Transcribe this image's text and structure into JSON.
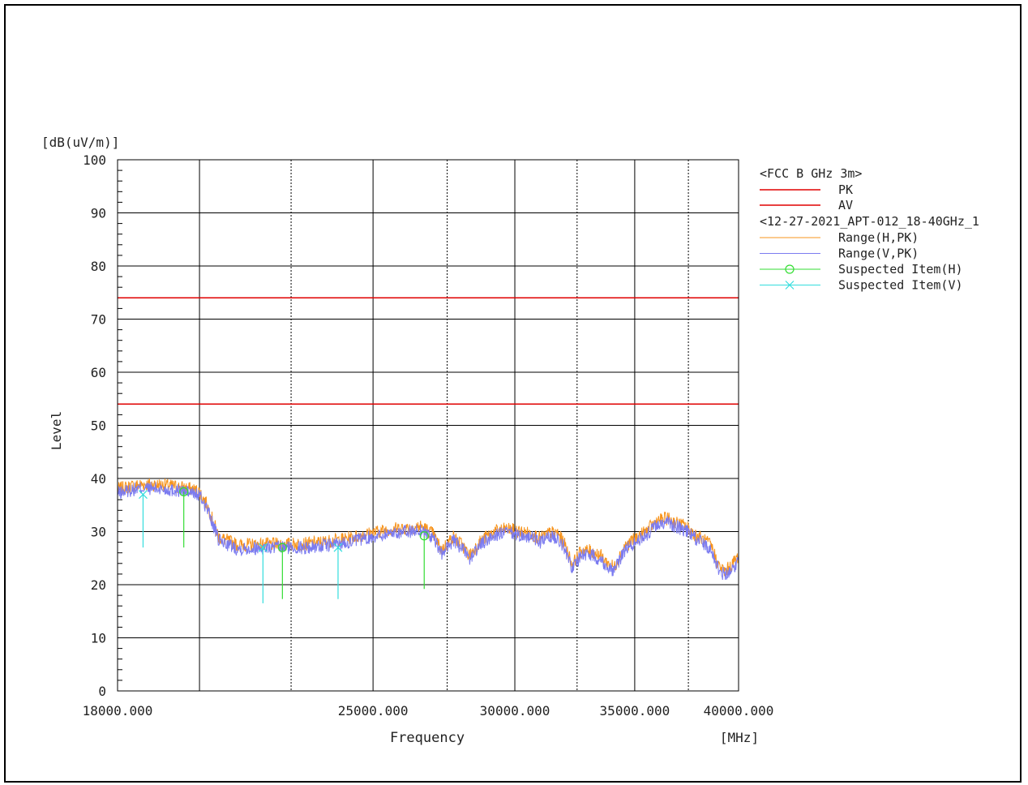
{
  "chart_data": {
    "type": "line",
    "title": "",
    "ylabel": "Level",
    "xlabel": "Frequency",
    "y_unit": "[dB(uV/m)]",
    "x_unit": "[MHz]",
    "ylim": [
      0,
      100
    ],
    "xlim": [
      18000,
      40000
    ],
    "x_scale": "log",
    "y_ticks": [
      0,
      10,
      20,
      30,
      40,
      50,
      60,
      70,
      80,
      90,
      100
    ],
    "y_tick_labels": [
      "0",
      "10",
      "20",
      "30",
      "40",
      "50",
      "60",
      "70",
      "80",
      "90",
      "100"
    ],
    "x_tick_labels": [
      {
        "value": 18000,
        "label": "18000.000"
      },
      {
        "value": 25000,
        "label": "25000.000"
      },
      {
        "value": 30000,
        "label": "30000.000"
      },
      {
        "value": 35000,
        "label": "35000.000"
      },
      {
        "value": 40000,
        "label": "40000.000"
      }
    ],
    "x_gridlines_solid": [
      20000,
      25000,
      30000,
      35000
    ],
    "x_gridlines_dashed": [
      22500,
      27500,
      32500,
      37500
    ],
    "grid": true,
    "legend_position": "right",
    "limit_group_label": "<FCC B GHz 3m>",
    "data_group_label": "<12-27-2021_APT-012_18-40GHz_1",
    "limits": [
      {
        "name": "PK",
        "value": 74,
        "color": "#e00000"
      },
      {
        "name": "AV",
        "value": 54,
        "color": "#e00000"
      }
    ],
    "series": [
      {
        "name": "Range(H,PK)",
        "color": "#f7941d",
        "x": [
          18000,
          18300,
          18600,
          19000,
          19400,
          19800,
          20000,
          20200,
          20500,
          21000,
          22000,
          23000,
          24000,
          25000,
          25600,
          26200,
          26600,
          27000,
          27300,
          27700,
          28000,
          28300,
          28700,
          29200,
          29700,
          30200,
          30700,
          31000,
          31400,
          31700,
          32000,
          32300,
          32700,
          33100,
          33500,
          33800,
          34100,
          34500,
          35000,
          35500,
          36000,
          36500,
          37000,
          37400,
          37800,
          38200,
          38600,
          39000,
          39300,
          39600,
          40000
        ],
        "values": [
          38,
          38.5,
          38.9,
          38.8,
          38.5,
          38,
          37.5,
          35,
          29,
          27.5,
          27.6,
          27.7,
          28.5,
          29.8,
          30.5,
          30.7,
          31,
          29.6,
          26.5,
          29,
          27.7,
          25.5,
          28.2,
          30,
          30.5,
          30,
          29.5,
          28.7,
          29.8,
          29.7,
          27.5,
          23.8,
          26.5,
          26.3,
          25.5,
          24,
          23.3,
          27,
          28.6,
          30,
          32,
          32.5,
          31.5,
          31,
          29.5,
          28.5,
          27.5,
          23.5,
          22.5,
          23.5,
          25.5
        ]
      },
      {
        "name": "Range(V,PK)",
        "color": "#7b7bf0",
        "x": [
          18000,
          18300,
          18600,
          19000,
          19400,
          19800,
          20000,
          20200,
          20500,
          21000,
          22000,
          23000,
          24000,
          25000,
          25600,
          26200,
          26600,
          27000,
          27300,
          27700,
          28000,
          28300,
          28700,
          29200,
          29700,
          30200,
          30700,
          31000,
          31400,
          31700,
          32000,
          32300,
          32700,
          33100,
          33500,
          33800,
          34100,
          34500,
          35000,
          35500,
          36000,
          36500,
          37000,
          37400,
          37800,
          38200,
          38600,
          39000,
          39300,
          39600,
          40000
        ],
        "values": [
          37.2,
          37.8,
          38.2,
          38,
          37.8,
          37.3,
          36.8,
          34.3,
          28.3,
          26.8,
          27,
          27,
          27.8,
          29,
          29.8,
          30,
          30.3,
          28.9,
          25.8,
          28.3,
          27,
          24.8,
          27.5,
          29.3,
          29.8,
          29.3,
          28.8,
          28,
          29,
          28.9,
          26.8,
          23,
          25.8,
          25.6,
          24.8,
          23.3,
          22.6,
          26.3,
          27.9,
          29.3,
          31.2,
          31.7,
          30.8,
          30.2,
          28.8,
          27.8,
          26.8,
          22.8,
          21.8,
          22.8,
          24.5
        ]
      },
      {
        "name": "Suspected Item(H)",
        "color": "#33dd33",
        "marker": "circle",
        "points": [
          {
            "x": 19600,
            "peak": 37.5,
            "base": 27
          },
          {
            "x": 22250,
            "peak": 27,
            "base": 17.3
          },
          {
            "x": 26700,
            "peak": 29.2,
            "base": 19.2
          }
        ]
      },
      {
        "name": "Suspected Item(V)",
        "color": "#33dddd",
        "marker": "x",
        "points": [
          {
            "x": 18600,
            "peak": 37,
            "base": 27
          },
          {
            "x": 21700,
            "peak": 27,
            "base": 16.5
          },
          {
            "x": 23900,
            "peak": 27,
            "base": 17.3
          }
        ]
      }
    ]
  }
}
